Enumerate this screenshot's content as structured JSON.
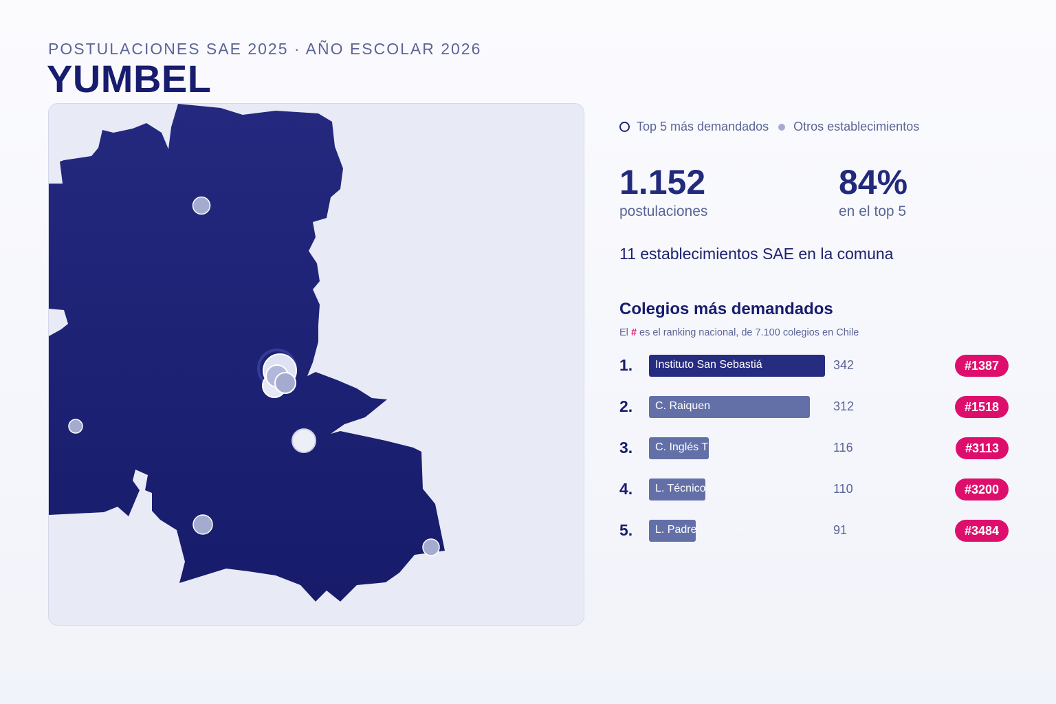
{
  "header": {
    "subtitle": "POSTULACIONES SAE 2025 · AÑO ESCOLAR 2026",
    "title": "YUMBEL"
  },
  "legend": {
    "top5_label": "Top 5 más demandados",
    "others_label": "Otros establecimientos"
  },
  "stats": {
    "applications_value": "1.152",
    "applications_label": "postulaciones",
    "top5_share_value": "84%",
    "top5_share_label": "en el top 5"
  },
  "establishments_line": "11 establecimientos SAE en la comuna",
  "ranking": {
    "title": "Colegios más demandados",
    "note_prefix": "El",
    "note_hash": "#",
    "note_suffix": "es el ranking nacional, de 7.100 colegios en Chile",
    "max_value": 342,
    "items": [
      {
        "rank": "1.",
        "name": "Instituto San Sebastiá",
        "value": 342,
        "value_text": "342",
        "badge": "#1387"
      },
      {
        "rank": "2.",
        "name": "C. Raiquen",
        "value": 312,
        "value_text": "312",
        "badge": "#1518"
      },
      {
        "rank": "3.",
        "name": "C. Inglés The Sower Sc",
        "value": 116,
        "value_text": "116",
        "badge": "#3113"
      },
      {
        "rank": "4.",
        "name": "L. Técnico Profesional",
        "value": 110,
        "value_text": "110",
        "badge": "#3200"
      },
      {
        "rank": "5.",
        "name": "L. Padre Luis Alberto",
        "value": 91,
        "value_text": "91",
        "badge": "#3484"
      }
    ]
  },
  "colors": {
    "map_fill": "#1c2276",
    "background_land": "#e8ebf5",
    "top5_bar": "#262d80",
    "other_bar": "#6370a8",
    "badge": "#de0f6c",
    "other_marker": "#a4abcf"
  }
}
